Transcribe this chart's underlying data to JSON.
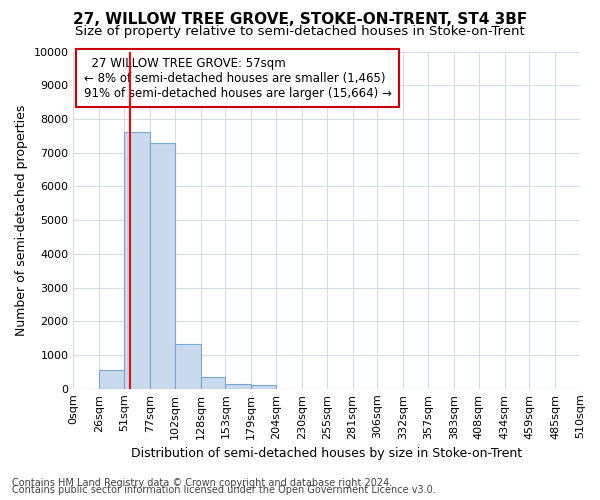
{
  "title": "27, WILLOW TREE GROVE, STOKE-ON-TRENT, ST4 3BF",
  "subtitle": "Size of property relative to semi-detached houses in Stoke-on-Trent",
  "xlabel": "Distribution of semi-detached houses by size in Stoke-on-Trent",
  "ylabel": "Number of semi-detached properties",
  "annotation_title": "27 WILLOW TREE GROVE: 57sqm",
  "annotation_line1": "← 8% of semi-detached houses are smaller (1,465)",
  "annotation_line2": "91% of semi-detached houses are larger (15,664) →",
  "footer_line1": "Contains HM Land Registry data © Crown copyright and database right 2024.",
  "footer_line2": "Contains public sector information licensed under the Open Government Licence v3.0.",
  "bar_color": "#c9d9ee",
  "bar_edge_color": "#7aa8d0",
  "red_line_x": 57,
  "bin_edges": [
    0,
    26,
    51,
    77,
    102,
    128,
    153,
    179,
    204,
    230,
    255,
    281,
    306,
    332,
    357,
    383,
    408,
    434,
    459,
    485,
    510
  ],
  "bin_heights": [
    0,
    560,
    7620,
    7280,
    1330,
    350,
    155,
    120,
    0,
    0,
    0,
    0,
    0,
    0,
    0,
    0,
    0,
    0,
    0,
    0
  ],
  "tick_labels": [
    "0sqm",
    "26sqm",
    "51sqm",
    "77sqm",
    "102sqm",
    "128sqm",
    "153sqm",
    "179sqm",
    "204sqm",
    "230sqm",
    "255sqm",
    "281sqm",
    "306sqm",
    "332sqm",
    "357sqm",
    "383sqm",
    "408sqm",
    "434sqm",
    "459sqm",
    "485sqm",
    "510sqm"
  ],
  "ylim": [
    0,
    10000
  ],
  "yticks": [
    0,
    1000,
    2000,
    3000,
    4000,
    5000,
    6000,
    7000,
    8000,
    9000,
    10000
  ],
  "background_color": "#ffffff",
  "grid_color": "#d0dce8",
  "annotation_box_color": "#ffffff",
  "annotation_box_edge": "#cc0000",
  "title_fontsize": 11,
  "subtitle_fontsize": 9.5,
  "axis_label_fontsize": 9,
  "tick_fontsize": 8,
  "annotation_fontsize": 8.5,
  "footer_fontsize": 7
}
